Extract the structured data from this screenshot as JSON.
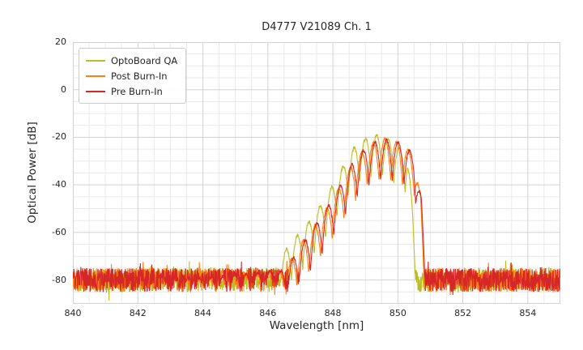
{
  "chart_data": {
    "type": "line",
    "title": "D4777 V21089 Ch. 1",
    "xlabel": "Wavelength [nm]",
    "ylabel": "Optical Power [dB]",
    "xlim": [
      840,
      855
    ],
    "ylim": [
      -90,
      20
    ],
    "xticks": [
      840,
      842,
      844,
      846,
      848,
      850,
      852,
      854
    ],
    "yticks": [
      20,
      0,
      -20,
      -40,
      -60,
      -80
    ],
    "grid": {
      "major_color": "#d2d2d2",
      "minor_color": "#e9e9e9",
      "x_minor_step": 0.5,
      "y_minor_step": 5,
      "border_color": "#d2d2d2"
    },
    "legend_position": "upper-left",
    "series": [
      {
        "name": "OptoBoard QA",
        "color": "#bcbd22",
        "seed": 11,
        "noise_floor": -80,
        "noise_amp": 5,
        "mode_center": 849.35,
        "mode_spacing": 0.35,
        "mode_depth": 17,
        "envelope": [
          [
            840,
            -84
          ],
          [
            846.2,
            -77
          ],
          [
            846.6,
            -66
          ],
          [
            847.0,
            -60
          ],
          [
            847.4,
            -53
          ],
          [
            847.8,
            -45
          ],
          [
            848.2,
            -35
          ],
          [
            848.6,
            -25
          ],
          [
            849.0,
            -20.5
          ],
          [
            849.35,
            -19
          ],
          [
            849.7,
            -20.5
          ],
          [
            850.0,
            -23.5
          ],
          [
            850.3,
            -27
          ],
          [
            850.45,
            -50
          ],
          [
            850.6,
            -84
          ],
          [
            855,
            -84
          ]
        ]
      },
      {
        "name": "Post Burn-In",
        "color": "#ff7f0e",
        "seed": 22,
        "noise_floor": -80,
        "noise_amp": 5,
        "mode_center": 849.6,
        "mode_spacing": 0.36,
        "mode_depth": 17,
        "envelope": [
          [
            840,
            -84
          ],
          [
            846.5,
            -76
          ],
          [
            847.0,
            -65
          ],
          [
            847.4,
            -58
          ],
          [
            847.8,
            -50
          ],
          [
            848.2,
            -41
          ],
          [
            848.6,
            -31
          ],
          [
            849.0,
            -24.5
          ],
          [
            849.3,
            -22
          ],
          [
            849.6,
            -20.5
          ],
          [
            849.9,
            -21.5
          ],
          [
            850.2,
            -24
          ],
          [
            850.5,
            -27.5
          ],
          [
            850.7,
            -45
          ],
          [
            850.85,
            -84
          ],
          [
            855,
            -84
          ]
        ]
      },
      {
        "name": "Pre Burn-In",
        "color": "#d62728",
        "seed": 33,
        "noise_floor": -80,
        "noise_amp": 5,
        "mode_center": 849.65,
        "mode_spacing": 0.36,
        "mode_depth": 17,
        "envelope": [
          [
            840,
            -84
          ],
          [
            846.5,
            -76
          ],
          [
            847.0,
            -66
          ],
          [
            847.4,
            -58
          ],
          [
            847.8,
            -50
          ],
          [
            848.2,
            -41
          ],
          [
            848.6,
            -31
          ],
          [
            849.0,
            -24.5
          ],
          [
            849.3,
            -22
          ],
          [
            849.65,
            -21
          ],
          [
            849.95,
            -21.5
          ],
          [
            850.25,
            -24
          ],
          [
            850.5,
            -27.5
          ],
          [
            850.72,
            -45
          ],
          [
            850.87,
            -84
          ],
          [
            855,
            -84
          ]
        ]
      }
    ]
  }
}
